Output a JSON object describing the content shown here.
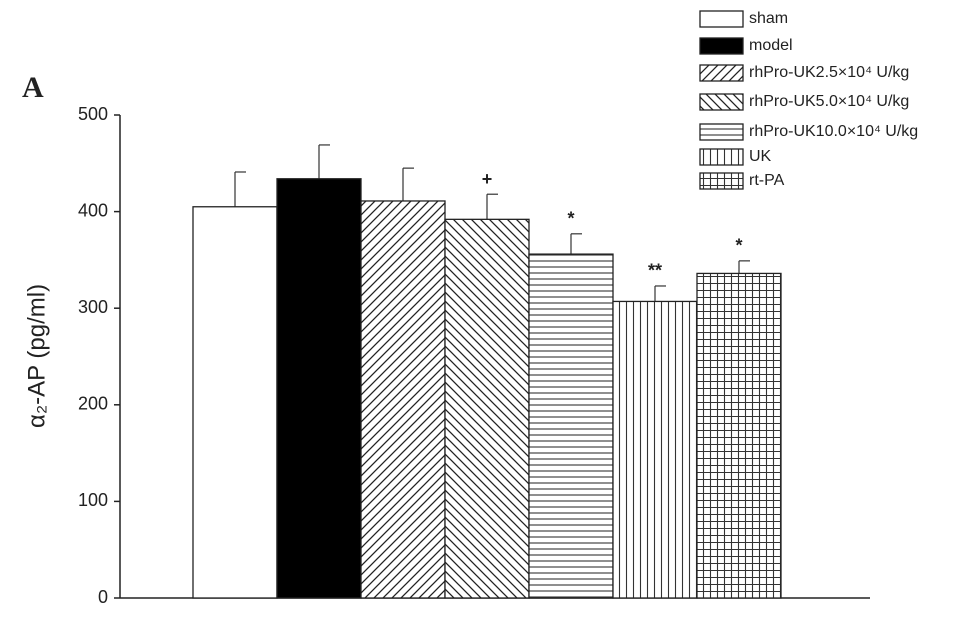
{
  "chart_data": {
    "type": "bar",
    "panel_label": "A",
    "y_label": "α₂-AP (pg/ml)",
    "ylim": [
      0,
      500
    ],
    "yticks": [
      0,
      100,
      200,
      300,
      400,
      500
    ],
    "series": [
      {
        "name": "sham",
        "color": "#ffffff",
        "pattern": "none",
        "values": [
          405
        ],
        "errors": [
          36
        ]
      },
      {
        "name": "model",
        "color": "#000000",
        "pattern": "solid",
        "values": [
          434
        ],
        "errors": [
          35
        ]
      },
      {
        "name": "rhPro-UK2.5×10⁴ U/kg",
        "color": "#ffffff",
        "pattern": "diag-up",
        "values": [
          411
        ],
        "errors": [
          34
        ]
      },
      {
        "name": "rhPro-UK5.0×10⁴ U/kg",
        "color": "#ffffff",
        "pattern": "diag-down",
        "values": [
          392
        ],
        "errors": [
          26
        ],
        "annotation": "+"
      },
      {
        "name": "rhPro-UK10.0×10⁴ U/kg",
        "color": "#ffffff",
        "pattern": "horizontal",
        "values": [
          356
        ],
        "errors": [
          21
        ],
        "annotation": "*"
      },
      {
        "name": "UK",
        "color": "#ffffff",
        "pattern": "vertical",
        "values": [
          307
        ],
        "errors": [
          16
        ],
        "annotation": "**"
      },
      {
        "name": "rt-PA",
        "color": "#ffffff",
        "pattern": "grid",
        "values": [
          336
        ],
        "errors": [
          13
        ],
        "annotation": "*"
      }
    ]
  }
}
